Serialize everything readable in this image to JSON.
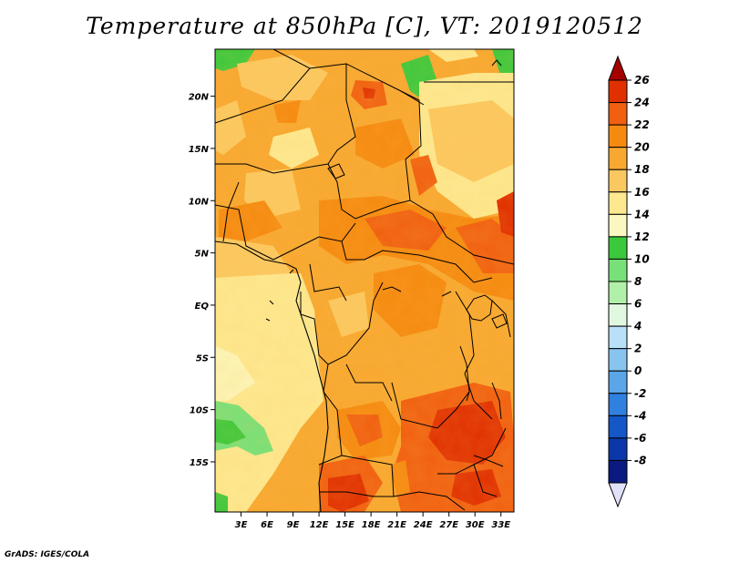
{
  "title": "Temperature at 850hPa [C], VT: 2019120512",
  "credit": "GrADS: IGES/COLA",
  "map": {
    "lon_ticks": [
      "3E",
      "6E",
      "9E",
      "12E",
      "15E",
      "18E",
      "21E",
      "24E",
      "27E",
      "30E",
      "33E"
    ],
    "lat_ticks": [
      "20N",
      "15N",
      "10N",
      "5N",
      "EQ",
      "5S",
      "10S",
      "15S"
    ],
    "lon_values": [
      3,
      6,
      9,
      12,
      15,
      18,
      21,
      24,
      27,
      30,
      33
    ],
    "lat_values": [
      20,
      15,
      10,
      5,
      0,
      -5,
      -10,
      -15
    ],
    "lon_range": [
      0,
      34.5
    ],
    "lat_range": [
      -19.8,
      24.5
    ]
  },
  "colorbar": {
    "levels": [
      "26",
      "24",
      "22",
      "20",
      "18",
      "16",
      "14",
      "12",
      "10",
      "8",
      "6",
      "4",
      "2",
      "0",
      "-2",
      "-4",
      "-6",
      "-8"
    ],
    "colors": [
      "#a50000",
      "#e03000",
      "#f06010",
      "#f58a10",
      "#f7a830",
      "#fbc860",
      "#fde890",
      "#fbf7c0",
      "#3cc83c",
      "#78e078",
      "#b0f0a8",
      "#e0f8e0",
      "#b8e0f8",
      "#88c4f0",
      "#5aa6e8",
      "#3080e0",
      "#1458c8",
      "#0a38a8",
      "#0a1a80",
      "#e0e0f8"
    ]
  }
}
